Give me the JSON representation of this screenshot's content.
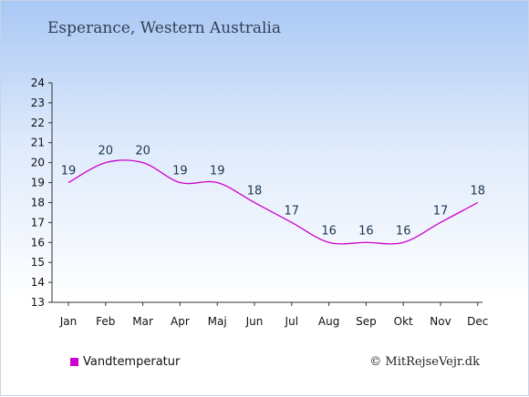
{
  "page": {
    "title": "Esperance, Western Australia",
    "credit": "© MitRejseVejr.dk"
  },
  "chart_data": {
    "type": "line",
    "title": "Esperance, Western Australia",
    "xlabel": "",
    "ylabel": "",
    "categories": [
      "Jan",
      "Feb",
      "Mar",
      "Apr",
      "Maj",
      "Jun",
      "Jul",
      "Aug",
      "Sep",
      "Okt",
      "Nov",
      "Dec"
    ],
    "series": [
      {
        "name": "Vandtemperatur",
        "values": [
          19,
          20,
          20,
          19,
          19,
          18,
          17,
          16,
          16,
          16,
          17,
          18
        ],
        "color": "#cc00cc"
      }
    ],
    "yticks": [
      13,
      14,
      15,
      16,
      17,
      18,
      19,
      20,
      21,
      22,
      23,
      24
    ],
    "ylim": [
      13,
      24
    ],
    "grid": false,
    "legend": "bottom-left"
  }
}
